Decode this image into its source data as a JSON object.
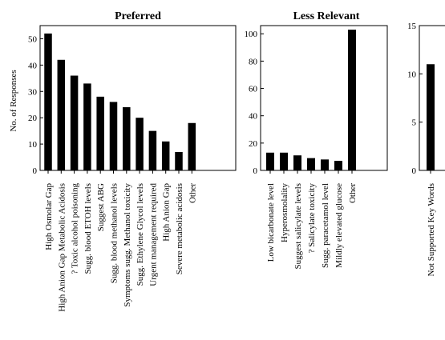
{
  "chart_data": [
    {
      "type": "bar",
      "title": "Preferred",
      "ylabel": "No. of Responses",
      "xlabel": "",
      "ylim": [
        0,
        55
      ],
      "yticks": [
        0,
        10,
        20,
        30,
        40,
        50
      ],
      "bar_color": "#000000",
      "categories": [
        "High Osmolar Gap",
        "High Anion Gap Metabolic Acidosis",
        "? Toxic alcohol poisoning",
        "Sugg. blood ETOH levels",
        "Suggest ABG",
        "Sugg. blood methanol levels",
        "Symptoms sugg. Methanol toxicity",
        "Sugg. Ethylene Glycol levels",
        "Urgent management required",
        "High Anion Gap",
        "Severe metabolic acidosis",
        "Other"
      ],
      "values": [
        52,
        42,
        36,
        33,
        28,
        26,
        24,
        20,
        15,
        11,
        7,
        18
      ]
    },
    {
      "type": "bar",
      "title": "Less Relevant",
      "ylabel": "",
      "xlabel": "",
      "ylim": [
        0,
        106
      ],
      "yticks": [
        0,
        20,
        40,
        60,
        80,
        100
      ],
      "bar_color": "#000000",
      "categories": [
        "Low bicarbonate level",
        "Hyperosmolality",
        "Suggest salicylate levels",
        "? Salicylate toxicity",
        "Sugg. paracetamol level",
        "Mildly elevated glucose",
        "Other"
      ],
      "values": [
        13,
        13,
        11,
        9,
        8,
        7,
        103
      ]
    },
    {
      "type": "bar",
      "title": "",
      "ylabel": "",
      "xlabel": "",
      "ylim": [
        0,
        15
      ],
      "yticks": [
        0,
        5,
        10,
        15
      ],
      "bar_color": "#000000",
      "categories": [
        "Not Supported Key Words"
      ],
      "values": [
        11
      ]
    }
  ]
}
